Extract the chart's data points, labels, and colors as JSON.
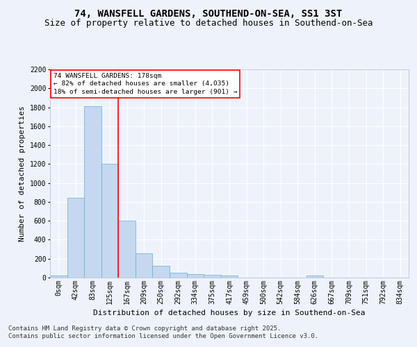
{
  "title1": "74, WANSFELL GARDENS, SOUTHEND-ON-SEA, SS1 3ST",
  "title2": "Size of property relative to detached houses in Southend-on-Sea",
  "xlabel": "Distribution of detached houses by size in Southend-on-Sea",
  "ylabel": "Number of detached properties",
  "categories": [
    "0sqm",
    "42sqm",
    "83sqm",
    "125sqm",
    "167sqm",
    "209sqm",
    "250sqm",
    "292sqm",
    "334sqm",
    "375sqm",
    "417sqm",
    "459sqm",
    "500sqm",
    "542sqm",
    "584sqm",
    "626sqm",
    "667sqm",
    "709sqm",
    "751sqm",
    "792sqm",
    "834sqm"
  ],
  "values": [
    25,
    845,
    1810,
    1205,
    600,
    260,
    125,
    50,
    40,
    30,
    20,
    0,
    0,
    0,
    0,
    25,
    0,
    0,
    0,
    0,
    0
  ],
  "bar_color": "#c5d8f0",
  "bar_edge_color": "#6aaad4",
  "vline_color": "red",
  "annotation_text": "74 WANSFELL GARDENS: 178sqm\n← 82% of detached houses are smaller (4,035)\n18% of semi-detached houses are larger (901) →",
  "annotation_box_color": "white",
  "annotation_box_edge": "red",
  "ylim": [
    0,
    2200
  ],
  "yticks": [
    0,
    200,
    400,
    600,
    800,
    1000,
    1200,
    1400,
    1600,
    1800,
    2000,
    2200
  ],
  "footer1": "Contains HM Land Registry data © Crown copyright and database right 2025.",
  "footer2": "Contains public sector information licensed under the Open Government Licence v3.0.",
  "bg_color": "#eef3fb",
  "grid_color": "#ffffff",
  "title_fontsize": 10,
  "subtitle_fontsize": 9,
  "axis_label_fontsize": 8,
  "tick_fontsize": 7,
  "footer_fontsize": 6.5
}
